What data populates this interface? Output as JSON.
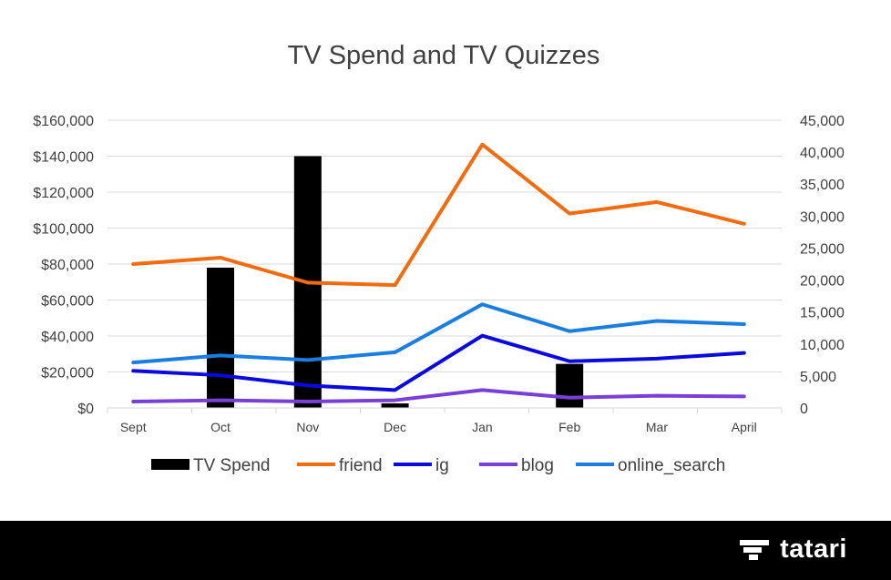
{
  "chart_data": {
    "type": "bar+line",
    "title": "TV Spend and TV Quizzes",
    "categories": [
      "Sept",
      "Oct",
      "Nov",
      "Dec",
      "Jan",
      "Feb",
      "Mar",
      "April"
    ],
    "left_axis": {
      "range": [
        0,
        160000
      ],
      "ticks": [
        0,
        20000,
        40000,
        60000,
        80000,
        100000,
        120000,
        140000,
        160000
      ],
      "tick_labels": [
        "$0",
        "$20,000",
        "$40,000",
        "$60,000",
        "$80,000",
        "$100,000",
        "$120,000",
        "$140,000",
        "$160,000"
      ]
    },
    "right_axis": {
      "range": [
        0,
        45000
      ],
      "ticks": [
        0,
        5000,
        10000,
        15000,
        20000,
        25000,
        30000,
        35000,
        40000,
        45000
      ],
      "tick_labels": [
        "0",
        "5,000",
        "10,000",
        "15,000",
        "20,000",
        "25,000",
        "30,000",
        "35,000",
        "40,000",
        "45,000"
      ]
    },
    "gridlines": true,
    "legend_position": "bottom",
    "bar_series": {
      "name": "TV Spend",
      "axis": "left",
      "color": "#000000",
      "values": [
        0,
        78000,
        140000,
        2500,
        0,
        24500,
        0,
        0
      ]
    },
    "series": [
      {
        "name": "friend",
        "axis": "right",
        "color": "#f26b0f",
        "values": [
          22500,
          23500,
          19600,
          19200,
          41200,
          30400,
          32200,
          28800
        ]
      },
      {
        "name": "ig",
        "axis": "right",
        "color": "#0a0adf",
        "values": [
          5800,
          5100,
          3500,
          2800,
          11300,
          7300,
          7700,
          8600
        ]
      },
      {
        "name": "blog",
        "axis": "right",
        "color": "#7a3fd6",
        "values": [
          1000,
          1200,
          1000,
          1200,
          2800,
          1600,
          1900,
          1800
        ]
      },
      {
        "name": "online_search",
        "axis": "right",
        "color": "#1a7ee0",
        "values": [
          7100,
          8200,
          7500,
          8700,
          16200,
          12000,
          13600,
          13100
        ]
      }
    ]
  },
  "footer": {
    "brand_name": "tatari",
    "background": "#000000",
    "icon": "tatari-logo-icon"
  }
}
